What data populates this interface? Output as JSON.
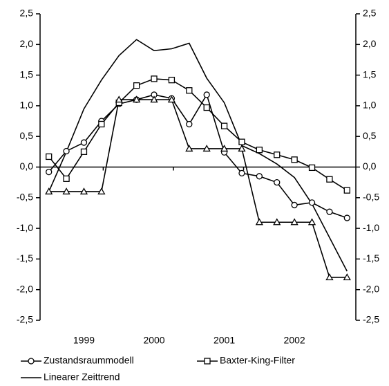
{
  "chart_data": {
    "type": "line",
    "categories": [
      null,
      null,
      "1999",
      null,
      null,
      null,
      "2000",
      null,
      null,
      null,
      "2001",
      null,
      null,
      null,
      "2002",
      null,
      null,
      null
    ],
    "series": [
      {
        "name": "Zustandsraummodell",
        "color": "#000000",
        "marker": "circle",
        "values": [
          -0.08,
          0.26,
          0.4,
          0.75,
          1.03,
          1.1,
          1.18,
          1.12,
          0.7,
          1.18,
          0.24,
          -0.1,
          -0.15,
          -0.25,
          -0.62,
          -0.58,
          -0.73,
          -0.83
        ]
      },
      {
        "name": "Baxter-King-Filter",
        "color": "#000000",
        "marker": "square",
        "values": [
          0.17,
          -0.19,
          0.25,
          0.7,
          1.05,
          1.33,
          1.44,
          1.42,
          1.25,
          0.97,
          0.67,
          0.41,
          0.28,
          0.2,
          0.12,
          -0.01,
          -0.2,
          -0.38
        ]
      },
      {
        "color": "#000000",
        "marker": "triangle",
        "values": [
          -0.4,
          -0.4,
          -0.4,
          -0.4,
          1.1,
          1.1,
          1.1,
          1.1,
          0.3,
          0.3,
          0.3,
          0.3,
          -0.9,
          -0.9,
          -0.9,
          -0.9,
          -1.8,
          -1.8
        ]
      },
      {
        "name": "Linearer Zeittrend",
        "color": "#000000",
        "marker": "none",
        "values": [
          -0.4,
          0.25,
          0.95,
          1.42,
          1.82,
          2.08,
          1.9,
          1.93,
          2.02,
          1.45,
          1.05,
          0.35,
          0.22,
          0.05,
          -0.17,
          -0.6,
          -1.15,
          -1.7
        ]
      }
    ],
    "ylim": [
      -2.5,
      2.5
    ],
    "yticks": [
      {
        "value": -2.5,
        "label": "-2,5"
      },
      {
        "value": -2,
        "label": "-2,0"
      },
      {
        "value": -1.5,
        "label": "-1,5"
      },
      {
        "value": -1,
        "label": "-1,0"
      },
      {
        "value": -0.5,
        "label": "-0,5"
      },
      {
        "value": 0,
        "label": "0,0"
      },
      {
        "value": 0.5,
        "label": "0,5"
      },
      {
        "value": 1,
        "label": "1,0"
      },
      {
        "value": 1.5,
        "label": "1,5"
      },
      {
        "value": 2,
        "label": "2,0"
      },
      {
        "value": 2.5,
        "label": "2,5"
      }
    ],
    "grid": false
  }
}
